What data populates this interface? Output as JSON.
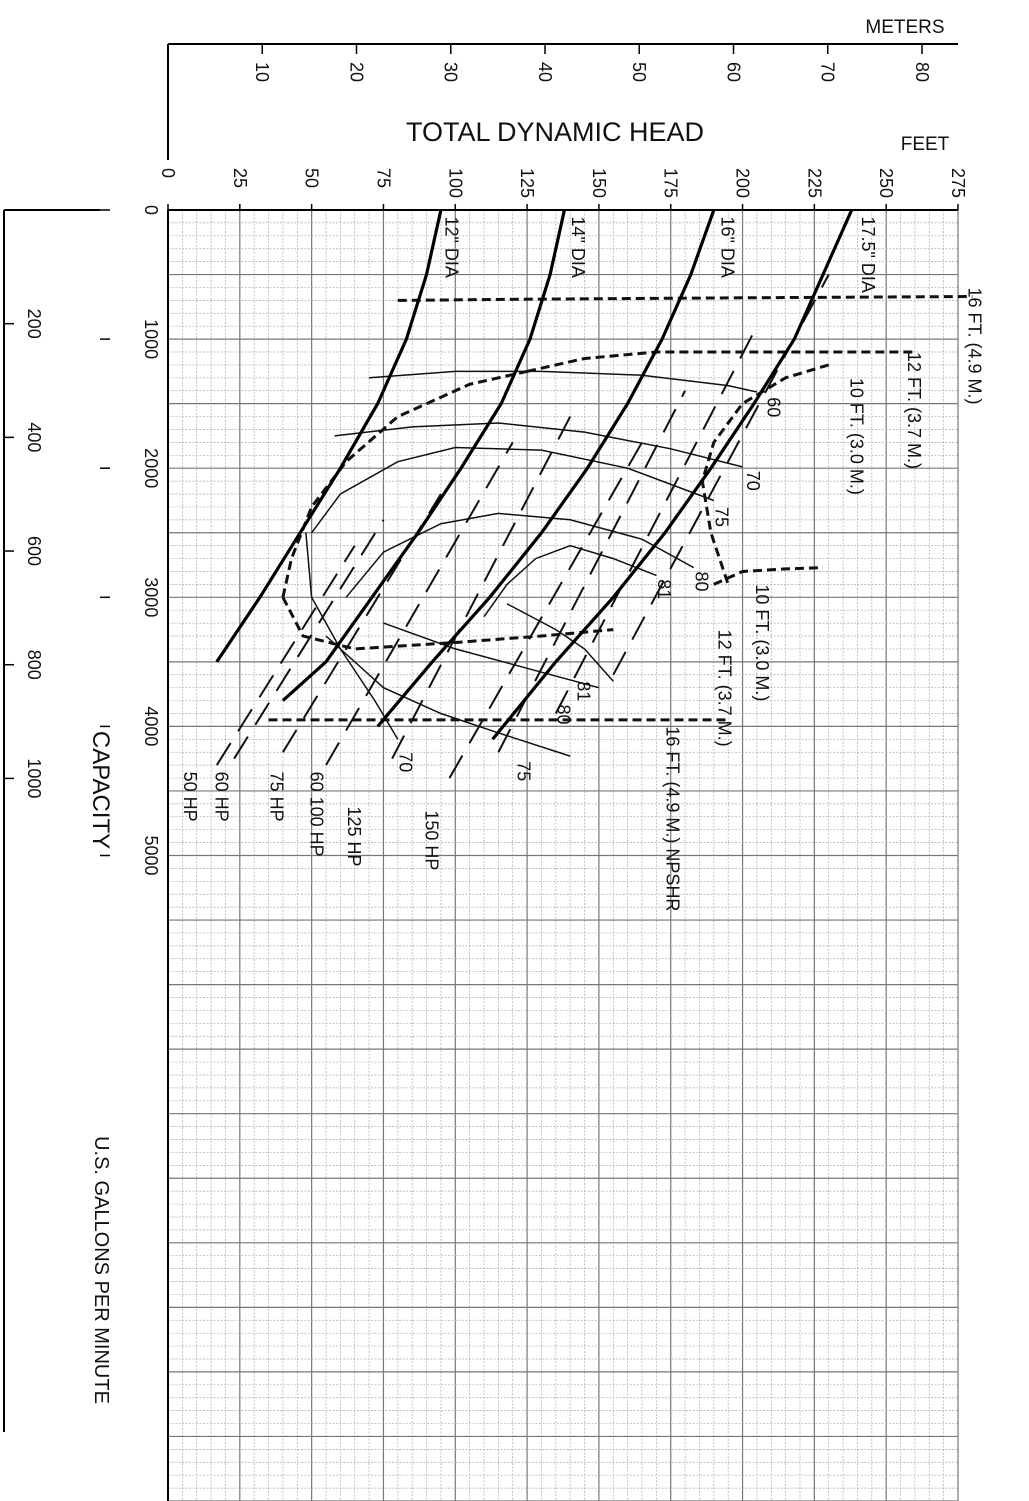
{
  "chart_data": {
    "type": "line",
    "xlabel": "TOTAL DYNAMIC HEAD",
    "x_unit_primary": "FEET",
    "x_unit_secondary": "METERS",
    "ylabel": "CAPACITY",
    "ylabel_sub": "U.S. GALLONS PER MINUTE",
    "xlim": [
      0,
      275
    ],
    "ylim": [
      0,
      10000
    ],
    "grid": true,
    "x_ticks_feet": [
      0,
      25,
      50,
      75,
      100,
      125,
      150,
      175,
      200,
      225,
      250,
      275
    ],
    "x_ticks_meters": [
      10,
      20,
      30,
      40,
      50,
      60,
      70,
      80
    ],
    "y_ticks_gpm": [
      0,
      1000,
      2000,
      3000,
      4000,
      5000
    ],
    "y_ticks_m3h": [
      200,
      400,
      600,
      800,
      1000
    ],
    "impeller_curves": [
      {
        "label": "12\" DIA",
        "points": [
          [
            95,
            0
          ],
          [
            90,
            500
          ],
          [
            83,
            1000
          ],
          [
            73,
            1500
          ],
          [
            60,
            2000
          ],
          [
            46,
            2500
          ],
          [
            32,
            3000
          ],
          [
            17,
            3500
          ]
        ]
      },
      {
        "label": "14\" DIA",
        "points": [
          [
            138,
            0
          ],
          [
            133,
            500
          ],
          [
            126,
            1000
          ],
          [
            116,
            1500
          ],
          [
            102,
            2000
          ],
          [
            87,
            2500
          ],
          [
            71,
            3000
          ],
          [
            55,
            3500
          ],
          [
            40,
            3800
          ]
        ]
      },
      {
        "label": "16\" DIA",
        "points": [
          [
            190,
            0
          ],
          [
            182,
            500
          ],
          [
            172,
            1000
          ],
          [
            160,
            1500
          ],
          [
            146,
            2000
          ],
          [
            130,
            2500
          ],
          [
            112,
            3000
          ],
          [
            92,
            3500
          ],
          [
            73,
            4000
          ]
        ]
      },
      {
        "label": "17.5\" DIA",
        "points": [
          [
            238,
            0
          ],
          [
            228,
            500
          ],
          [
            218,
            1000
          ],
          [
            204,
            1500
          ],
          [
            189,
            2000
          ],
          [
            173,
            2500
          ],
          [
            155,
            3000
          ],
          [
            135,
            3500
          ],
          [
            113,
            4100
          ]
        ]
      }
    ],
    "efficiency_curves": [
      {
        "label": "60",
        "points": [
          [
            70,
            1300
          ],
          [
            100,
            1250
          ],
          [
            130,
            1250
          ],
          [
            165,
            1280
          ],
          [
            195,
            1360
          ],
          [
            205,
            1410
          ]
        ]
      },
      {
        "label": "70",
        "points": [
          [
            58,
            1750
          ],
          [
            85,
            1680
          ],
          [
            115,
            1650
          ],
          [
            145,
            1720
          ],
          [
            175,
            1850
          ],
          [
            200,
            1990
          ]
        ]
      },
      {
        "label": "75",
        "points": [
          [
            50,
            2500
          ],
          [
            60,
            2200
          ],
          [
            80,
            1950
          ],
          [
            100,
            1840
          ],
          [
            130,
            1860
          ],
          [
            160,
            2000
          ],
          [
            190,
            2250
          ]
        ]
      },
      {
        "label": "80",
        "points": [
          [
            62,
            3000
          ],
          [
            75,
            2650
          ],
          [
            95,
            2430
          ],
          [
            115,
            2350
          ],
          [
            140,
            2400
          ],
          [
            165,
            2550
          ],
          [
            183,
            2770
          ]
        ]
      },
      {
        "label": "81",
        "points": [
          [
            110,
            3150
          ],
          [
            118,
            2900
          ],
          [
            128,
            2700
          ],
          [
            140,
            2600
          ],
          [
            155,
            2700
          ],
          [
            170,
            2830
          ]
        ]
      },
      {
        "label": "81",
        "points": [
          [
            118,
            3050
          ],
          [
            135,
            3250
          ],
          [
            145,
            3400
          ],
          [
            155,
            3650
          ]
        ]
      },
      {
        "label": "80",
        "points": [
          [
            75,
            3200
          ],
          [
            100,
            3400
          ],
          [
            125,
            3550
          ],
          [
            150,
            3700
          ]
        ]
      },
      {
        "label": "75",
        "points": [
          [
            55,
            3300
          ],
          [
            75,
            3700
          ],
          [
            95,
            3900
          ],
          [
            115,
            4050
          ],
          [
            140,
            4230
          ]
        ]
      },
      {
        "label": "70",
        "points": [
          [
            48,
            2500
          ],
          [
            50,
            3000
          ],
          [
            60,
            3400
          ],
          [
            72,
            3800
          ],
          [
            80,
            4100
          ]
        ]
      }
    ],
    "horsepower_lines": [
      {
        "label": "50 HP",
        "points": [
          [
            17,
            4300
          ],
          [
            65,
            2600
          ]
        ]
      },
      {
        "label": "60 HP",
        "points": [
          [
            23,
            4250
          ],
          [
            75,
            2400
          ]
        ]
      },
      {
        "label": "75 HP",
        "points": [
          [
            40,
            4200
          ],
          [
            95,
            2200
          ]
        ]
      },
      {
        "label": "60 100 HP",
        "points": [
          [
            55,
            4300
          ],
          [
            120,
            1800
          ]
        ]
      },
      {
        "label": "125 HP",
        "points": [
          [
            78,
            4250
          ],
          [
            140,
            1600
          ]
        ]
      },
      {
        "label": "150 HP",
        "points": [
          [
            98,
            4400
          ],
          [
            165,
            1800
          ]
        ]
      },
      {
        "label": "",
        "points": [
          [
            115,
            4200
          ],
          [
            180,
            1400
          ]
        ]
      },
      {
        "label": "",
        "points": [
          [
            135,
            3900
          ],
          [
            205,
            900
          ]
        ]
      },
      {
        "label": "",
        "points": [
          [
            155,
            3600
          ],
          [
            230,
            500
          ]
        ]
      }
    ],
    "npshr_curves": [
      {
        "label": "16 FT. (4.9 M.)",
        "points": [
          [
            80,
            700
          ],
          [
            130,
            690
          ],
          [
            200,
            680
          ],
          [
            280,
            670
          ]
        ]
      },
      {
        "label": "12 FT. (3.7 M.)",
        "points": [
          [
            125,
            1250
          ],
          [
            145,
            1150
          ],
          [
            170,
            1100
          ],
          [
            215,
            1100
          ],
          [
            260,
            1100
          ]
        ]
      },
      {
        "label": "10 FT. (3.0 M.)",
        "points": [
          [
            230,
            1200
          ],
          [
            215,
            1300
          ],
          [
            200,
            1500
          ],
          [
            190,
            1800
          ],
          [
            186,
            2100
          ],
          [
            189,
            2500
          ],
          [
            195,
            2900
          ]
        ]
      },
      {
        "label": "10 FT. (3.0 M.)",
        "points": [
          [
            40,
            3000
          ],
          [
            43,
            2700
          ],
          [
            50,
            2300
          ],
          [
            62,
            1950
          ],
          [
            80,
            1600
          ],
          [
            105,
            1350
          ],
          [
            125,
            1250
          ]
        ]
      },
      {
        "label": "12 FT. (3.7 M.)",
        "points": [
          [
            40,
            3000
          ],
          [
            47,
            3300
          ],
          [
            65,
            3400
          ],
          [
            100,
            3350
          ],
          [
            130,
            3300
          ],
          [
            155,
            3250
          ]
        ]
      },
      {
        "label": "",
        "points": [
          [
            190,
            2900
          ],
          [
            200,
            2800
          ],
          [
            215,
            2780
          ],
          [
            228,
            2770
          ]
        ]
      },
      {
        "label": "16 FT. (4.9 M.) NPSHR",
        "points": [
          [
            35,
            3950
          ],
          [
            90,
            3950
          ],
          [
            140,
            3950
          ],
          [
            195,
            3950
          ]
        ]
      }
    ],
    "labels": {
      "dia_12": "12\" DIA",
      "dia_14": "14\" DIA",
      "dia_16": "16\" DIA",
      "dia_175": "17.5\" DIA",
      "eff_60": "60",
      "eff_70": "70",
      "eff_75": "75",
      "eff_80": "80",
      "eff_81": "81",
      "eff_81b": "81",
      "eff_80b": "80",
      "eff_75b": "75",
      "eff_70b": "70",
      "hp_50": "50 HP",
      "hp_60": "60 HP",
      "hp_75": "75 HP",
      "hp_60_100": "60 100 HP",
      "hp_125": "125 HP",
      "hp_150": "150 HP",
      "npsh_16_top": "16 FT. (4.9 M.)",
      "npsh_12_top": "12 FT. (3.7 M.)",
      "npsh_10_top": "10 FT. (3.0 M.)",
      "npsh_10_mid": "10 FT. (3.0 M.)",
      "npsh_12_mid": "12 FT. (3.7 M.)",
      "npsh_16_bottom": "16 FT. (4.9 M.) NPSHR"
    }
  }
}
